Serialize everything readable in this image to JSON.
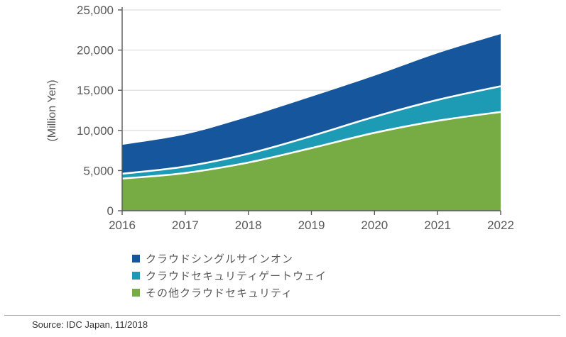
{
  "chart_data": {
    "type": "area",
    "stacked": true,
    "title": "",
    "xlabel": "",
    "ylabel": "(Million Yen)",
    "categories": [
      "2016",
      "2017",
      "2018",
      "2019",
      "2020",
      "2021",
      "2022"
    ],
    "series": [
      {
        "name": "クラウドシングルサインオン",
        "color": "#15569d",
        "values": [
          3600,
          4000,
          4600,
          4900,
          5100,
          5800,
          6500
        ]
      },
      {
        "name": "クラウドセキュリティゲートウェイ",
        "color": "#1d9bb4",
        "values": [
          600,
          800,
          1100,
          1500,
          2000,
          2600,
          3200
        ]
      },
      {
        "name": "その他クラウドセキュリティ",
        "color": "#77ab43",
        "values": [
          4000,
          4700,
          6000,
          7800,
          9700,
          11200,
          12300
        ]
      }
    ],
    "stack_order_bottom_to_top": [
      "その他クラウドセキュリティ",
      "クラウドセキュリティゲートウェイ",
      "クラウドシングルサインオン"
    ],
    "stacked_totals": [
      8200,
      9500,
      11700,
      14200,
      16800,
      19600,
      22000
    ],
    "ylim": [
      0,
      25000
    ],
    "ytick_values": [
      0,
      5000,
      10000,
      15000,
      20000,
      25000
    ],
    "ytick_labels": [
      "0",
      "5,000",
      "10,000",
      "15,000",
      "20,000",
      "25,000"
    ],
    "grid": true,
    "legend_position": "bottom-left",
    "band_separator_color": "#ffffff",
    "grid_color": "#d6d6d6",
    "axis_color": "#595959"
  },
  "source_note": "Source: IDC Japan, 11/2018"
}
